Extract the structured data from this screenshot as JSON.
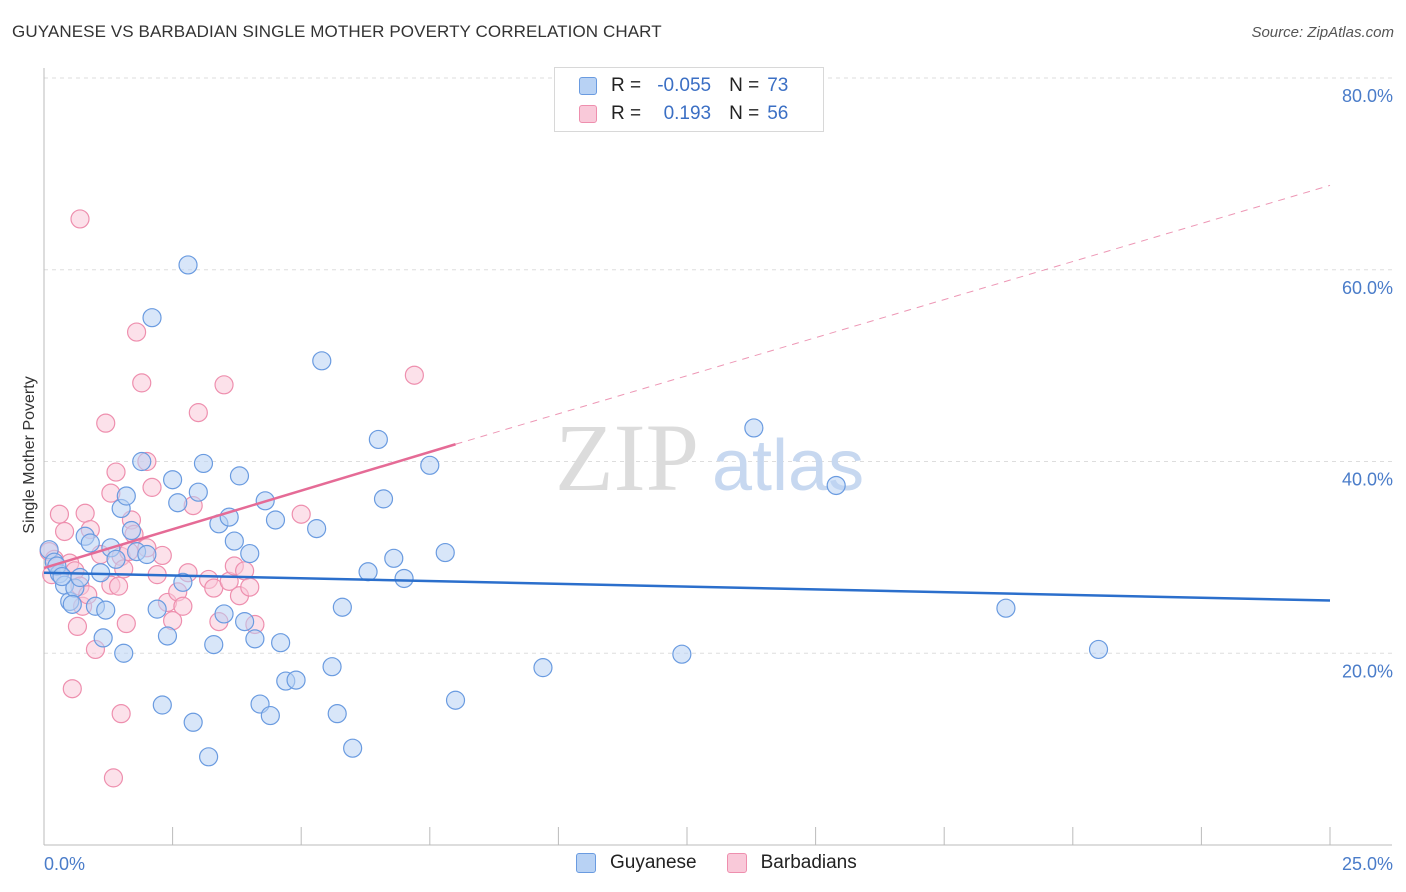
{
  "title": "GUYANESE VS BARBADIAN SINGLE MOTHER POVERTY CORRELATION CHART",
  "source": "Source: ZipAtlas.com",
  "watermark": {
    "zip": "ZIP",
    "atlas": "atlas"
  },
  "legend": {
    "rows": [
      {
        "r_label": "R =",
        "r_value": "-0.055",
        "n_label": "N =",
        "n_value": "73"
      },
      {
        "r_label": "R =",
        "r_value": "0.193",
        "n_label": "N =",
        "n_value": "56"
      }
    ]
  },
  "colors": {
    "guyanese_fill": "#b8d2f4",
    "guyanese_stroke": "#6a9be0",
    "guyanese_line": "#2b6fcc",
    "barbadian_fill": "#f9c9d9",
    "barbadian_stroke": "#ee8fae",
    "barbadian_line": "#e56b96",
    "axis_text": "#4a7cc9",
    "grid": "#dddddd"
  },
  "chart_data": {
    "type": "scatter",
    "title": "GUYANESE VS BARBADIAN SINGLE MOTHER POVERTY CORRELATION CHART",
    "xlabel": "",
    "ylabel": "Single Mother Poverty",
    "xlim": [
      0,
      25
    ],
    "ylim": [
      0,
      80
    ],
    "x_tick_labels": [
      "0.0%",
      "25.0%"
    ],
    "y_ticks": [
      20,
      40,
      60,
      80
    ],
    "y_tick_labels": [
      "20.0%",
      "40.0%",
      "60.0%",
      "80.0%"
    ],
    "series": [
      {
        "name": "Guyanese",
        "r": -0.055,
        "n": 73,
        "trend": {
          "x": [
            0,
            25
          ],
          "y": [
            28.4,
            25.5
          ],
          "style": "solid"
        },
        "points": [
          [
            0.1,
            30.8
          ],
          [
            0.2,
            29.5
          ],
          [
            0.3,
            28.3
          ],
          [
            0.4,
            27.1
          ],
          [
            0.5,
            25.4
          ],
          [
            0.6,
            26.8
          ],
          [
            0.7,
            27.9
          ],
          [
            0.8,
            32.2
          ],
          [
            0.9,
            31.5
          ],
          [
            1.0,
            24.9
          ],
          [
            1.1,
            28.4
          ],
          [
            1.2,
            24.5
          ],
          [
            1.3,
            31.0
          ],
          [
            1.4,
            29.8
          ],
          [
            1.5,
            35.1
          ],
          [
            1.6,
            36.4
          ],
          [
            1.7,
            32.8
          ],
          [
            1.8,
            30.6
          ],
          [
            1.9,
            40.0
          ],
          [
            2.0,
            30.3
          ],
          [
            2.1,
            55.0
          ],
          [
            2.2,
            24.6
          ],
          [
            2.3,
            14.6
          ],
          [
            2.4,
            21.8
          ],
          [
            2.5,
            38.1
          ],
          [
            2.6,
            35.7
          ],
          [
            2.7,
            27.4
          ],
          [
            2.8,
            60.5
          ],
          [
            2.9,
            12.8
          ],
          [
            3.0,
            36.8
          ],
          [
            3.1,
            39.8
          ],
          [
            3.2,
            9.2
          ],
          [
            3.3,
            20.9
          ],
          [
            3.4,
            33.5
          ],
          [
            3.5,
            24.1
          ],
          [
            3.6,
            34.2
          ],
          [
            3.7,
            31.7
          ],
          [
            3.8,
            38.5
          ],
          [
            3.9,
            23.3
          ],
          [
            4.0,
            30.4
          ],
          [
            4.1,
            21.5
          ],
          [
            4.2,
            14.7
          ],
          [
            4.3,
            35.9
          ],
          [
            4.4,
            13.5
          ],
          [
            4.5,
            33.9
          ],
          [
            4.6,
            21.1
          ],
          [
            4.7,
            17.1
          ],
          [
            4.9,
            17.2
          ],
          [
            5.3,
            33.0
          ],
          [
            5.4,
            50.5
          ],
          [
            5.6,
            18.6
          ],
          [
            5.7,
            13.7
          ],
          [
            5.8,
            24.8
          ],
          [
            6.0,
            10.1
          ],
          [
            6.3,
            28.5
          ],
          [
            6.5,
            42.3
          ],
          [
            6.6,
            36.1
          ],
          [
            6.8,
            29.9
          ],
          [
            7.0,
            27.8
          ],
          [
            7.5,
            39.6
          ],
          [
            7.8,
            30.5
          ],
          [
            8.0,
            15.1
          ],
          [
            9.7,
            18.5
          ],
          [
            12.4,
            19.9
          ],
          [
            13.8,
            43.5
          ],
          [
            15.4,
            37.5
          ],
          [
            18.7,
            24.7
          ],
          [
            20.5,
            20.4
          ],
          [
            0.25,
            29.1
          ],
          [
            0.35,
            28.0
          ],
          [
            0.55,
            25.1
          ],
          [
            1.15,
            21.6
          ],
          [
            1.55,
            20.0
          ]
        ]
      },
      {
        "name": "Barbadians",
        "r": 0.193,
        "n": 56,
        "trend": {
          "x": [
            0,
            8
          ],
          "y": [
            28.9,
            41.8
          ],
          "style": "solid",
          "extension": {
            "x": [
              8,
              25
            ],
            "y": [
              41.8,
              68.8
            ],
            "style": "dashed"
          }
        },
        "points": [
          [
            0.1,
            30.6
          ],
          [
            0.15,
            28.2
          ],
          [
            0.2,
            29.8
          ],
          [
            0.3,
            34.5
          ],
          [
            0.4,
            32.7
          ],
          [
            0.5,
            29.4
          ],
          [
            0.6,
            28.6
          ],
          [
            0.7,
            27.0
          ],
          [
            0.7,
            65.3
          ],
          [
            0.8,
            34.6
          ],
          [
            0.9,
            32.9
          ],
          [
            1.0,
            20.4
          ],
          [
            1.1,
            30.3
          ],
          [
            1.2,
            44.0
          ],
          [
            1.3,
            36.7
          ],
          [
            1.3,
            27.1
          ],
          [
            1.4,
            38.9
          ],
          [
            1.5,
            30.1
          ],
          [
            1.5,
            13.7
          ],
          [
            1.6,
            23.1
          ],
          [
            1.7,
            33.9
          ],
          [
            1.8,
            53.5
          ],
          [
            1.9,
            48.2
          ],
          [
            2.0,
            40.0
          ],
          [
            2.0,
            31.0
          ],
          [
            2.1,
            37.3
          ],
          [
            2.2,
            28.2
          ],
          [
            2.3,
            30.2
          ],
          [
            2.4,
            25.3
          ],
          [
            2.5,
            23.4
          ],
          [
            2.6,
            26.4
          ],
          [
            2.7,
            24.9
          ],
          [
            2.8,
            28.4
          ],
          [
            2.9,
            35.4
          ],
          [
            3.0,
            45.1
          ],
          [
            3.2,
            27.7
          ],
          [
            3.3,
            26.8
          ],
          [
            3.4,
            23.3
          ],
          [
            3.5,
            48.0
          ],
          [
            3.6,
            27.5
          ],
          [
            3.7,
            29.1
          ],
          [
            3.8,
            26.0
          ],
          [
            3.9,
            28.6
          ],
          [
            4.0,
            26.9
          ],
          [
            4.1,
            23.0
          ],
          [
            1.35,
            7.0
          ],
          [
            0.55,
            16.3
          ],
          [
            0.65,
            22.8
          ],
          [
            0.75,
            24.9
          ],
          [
            0.85,
            26.1
          ],
          [
            1.45,
            27.0
          ],
          [
            1.55,
            28.8
          ],
          [
            1.65,
            30.6
          ],
          [
            1.75,
            32.4
          ],
          [
            7.2,
            49.0
          ],
          [
            5.0,
            34.5
          ]
        ]
      }
    ]
  },
  "bottom_legend": {
    "items": [
      {
        "label": "Guyanese"
      },
      {
        "label": "Barbadians"
      }
    ]
  }
}
